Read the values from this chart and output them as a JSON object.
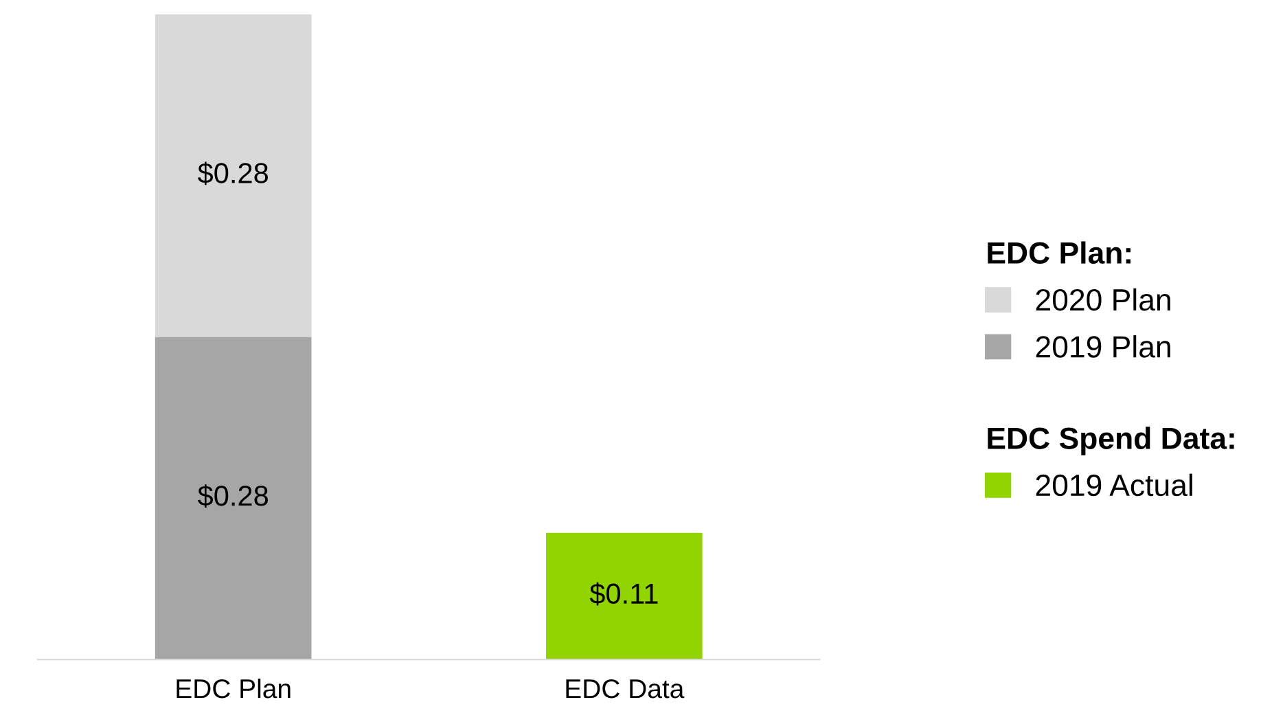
{
  "chart_data": {
    "type": "bar",
    "stacked": true,
    "categories": [
      "EDC Plan",
      "EDC Data"
    ],
    "series": [
      {
        "name": "2019 Plan",
        "color": "#a6a6a6",
        "values": [
          0.28,
          null
        ],
        "value_labels": [
          "$0.28",
          null
        ]
      },
      {
        "name": "2020 Plan",
        "color": "#d9d9d9",
        "values": [
          0.28,
          null
        ],
        "value_labels": [
          "$0.28",
          null
        ]
      },
      {
        "name": "2019 Actual",
        "color": "#92d400",
        "values": [
          null,
          0.11
        ],
        "value_labels": [
          null,
          "$0.11"
        ]
      }
    ],
    "legend_title": "EDC Plan:",
    "annotations": [
      "EDC Spend Data:"
    ],
    "legend": "right",
    "grid": false
  }
}
